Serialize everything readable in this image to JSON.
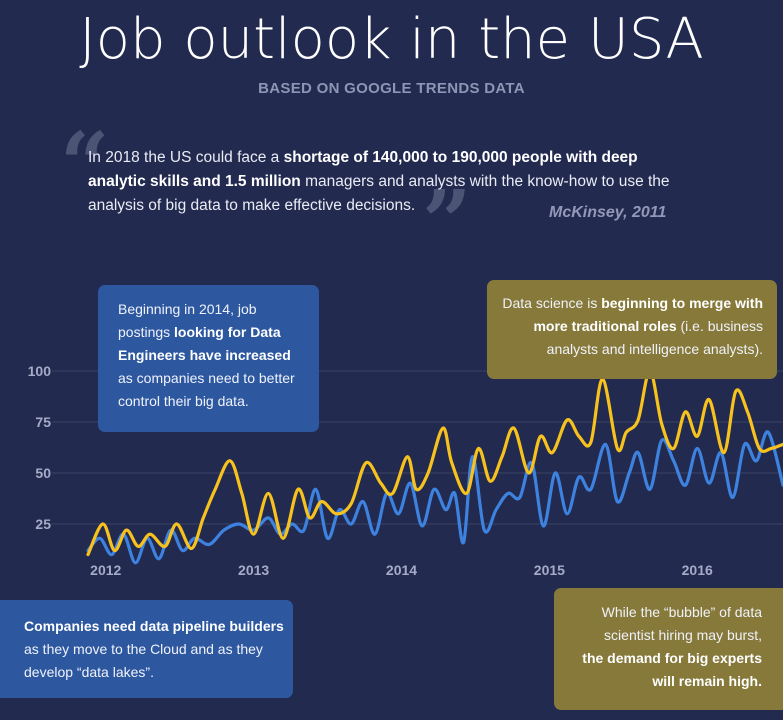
{
  "header": {
    "title": "Job outlook in the USA",
    "subtitle": "BASED ON GOOGLE TRENDS DATA"
  },
  "quote": {
    "open_mark": "“",
    "close_mark": "”",
    "part1": "In 2018 the US could face a ",
    "bold1": "shortage of 140,000 to 190,000 people with deep analytic skills and 1.5 million",
    "part2": " managers and analysts with the know-how to use the analysis of big data to make effective decisions.",
    "source": "McKinsey, 2011"
  },
  "callouts": {
    "engineers": {
      "line1": "Beginning in 2014, job",
      "line2a": "postings ",
      "line2b": "looking for Data",
      "line3": "Engineers have increased",
      "line4": "as companies need to better",
      "line5": "control their big data."
    },
    "science": {
      "line1a": "Data science is ",
      "line1b": "beginning to merge with",
      "line2a": "more traditional roles",
      "line2b": " (i.e. business",
      "line3": "analysts and intelligence analysts)."
    },
    "pipeline": {
      "line1": "Companies need data pipeline builders",
      "line2": "as they move to the Cloud and as they",
      "line3": "develop “data lakes”."
    },
    "bubble": {
      "line1": "While the “bubble” of data",
      "line2": "scientist hiring may burst,",
      "line3": "the demand for big experts",
      "line4": "will remain high."
    }
  },
  "colors": {
    "background": "#222a4f",
    "series_scientist": "#f7c21e",
    "series_engineer": "#3e82e0",
    "grid": "#3a4266",
    "box_blue": "#2d58a0",
    "box_gold": "#86793a"
  },
  "chart_data": {
    "type": "line",
    "title": "",
    "xlabel": "",
    "ylabel": "",
    "ylim": [
      0,
      100
    ],
    "xlim": [
      2011.88,
      2016.58
    ],
    "yticks": [
      25,
      50,
      75,
      100
    ],
    "xticks": [
      2012,
      2013,
      2014,
      2015,
      2016
    ],
    "grid": true,
    "series": [
      {
        "name": "Data Scientist",
        "color": "#f7c21e",
        "x": [
          2011.88,
          2011.98,
          2012.06,
          2012.14,
          2012.22,
          2012.3,
          2012.4,
          2012.48,
          2012.58,
          2012.66,
          2012.74,
          2012.84,
          2012.92,
          2013.0,
          2013.1,
          2013.2,
          2013.3,
          2013.38,
          2013.46,
          2013.56,
          2013.66,
          2013.76,
          2013.86,
          2013.94,
          2014.04,
          2014.1,
          2014.18,
          2014.28,
          2014.34,
          2014.44,
          2014.52,
          2014.6,
          2014.68,
          2014.76,
          2014.86,
          2014.94,
          2015.02,
          2015.12,
          2015.2,
          2015.28,
          2015.36,
          2015.46,
          2015.52,
          2015.6,
          2015.68,
          2015.76,
          2015.84,
          2015.92,
          2016.0,
          2016.08,
          2016.18,
          2016.26,
          2016.34,
          2016.42,
          2016.5,
          2016.58
        ],
        "y": [
          10,
          25,
          12,
          22,
          14,
          20,
          14,
          25,
          13,
          28,
          42,
          56,
          40,
          20,
          40,
          18,
          42,
          28,
          36,
          30,
          35,
          55,
          45,
          40,
          58,
          42,
          50,
          72,
          55,
          40,
          62,
          46,
          58,
          72,
          50,
          68,
          60,
          76,
          68,
          65,
          96,
          62,
          70,
          76,
          100,
          74,
          62,
          80,
          68,
          86,
          60,
          90,
          80,
          62,
          62,
          64
        ]
      },
      {
        "name": "Data Engineer",
        "color": "#3e82e0",
        "x": [
          2011.88,
          2011.96,
          2012.04,
          2012.12,
          2012.2,
          2012.28,
          2012.36,
          2012.44,
          2012.52,
          2012.6,
          2012.7,
          2012.8,
          2012.9,
          2013.0,
          2013.1,
          2013.18,
          2013.26,
          2013.34,
          2013.42,
          2013.5,
          2013.58,
          2013.66,
          2013.74,
          2013.82,
          2013.9,
          2013.98,
          2014.06,
          2014.14,
          2014.22,
          2014.3,
          2014.36,
          2014.42,
          2014.48,
          2014.56,
          2014.64,
          2014.72,
          2014.8,
          2014.88,
          2014.96,
          2015.04,
          2015.12,
          2015.2,
          2015.28,
          2015.38,
          2015.46,
          2015.54,
          2015.6,
          2015.68,
          2015.76,
          2015.84,
          2015.92,
          2016.0,
          2016.08,
          2016.16,
          2016.24,
          2016.32,
          2016.4,
          2016.48,
          2016.58
        ],
        "y": [
          12,
          18,
          10,
          20,
          6,
          18,
          8,
          22,
          12,
          18,
          15,
          22,
          25,
          22,
          28,
          20,
          25,
          22,
          42,
          18,
          32,
          25,
          36,
          20,
          40,
          30,
          45,
          24,
          42,
          32,
          40,
          16,
          58,
          22,
          32,
          40,
          38,
          55,
          24,
          50,
          30,
          48,
          42,
          64,
          36,
          50,
          60,
          42,
          66,
          56,
          44,
          62,
          45,
          60,
          38,
          64,
          56,
          70,
          44
        ]
      }
    ]
  }
}
